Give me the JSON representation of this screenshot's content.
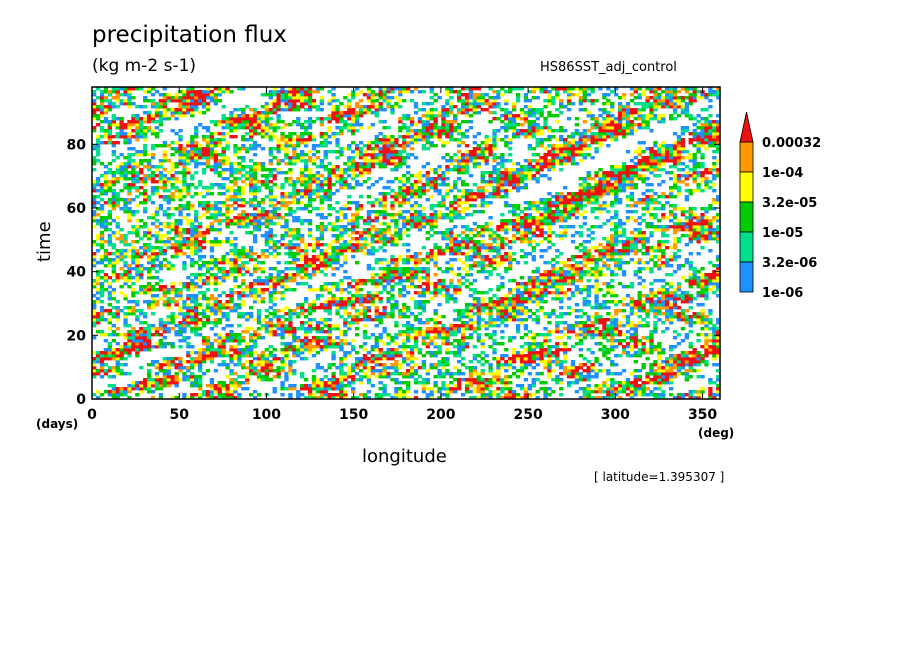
{
  "chart_data": {
    "type": "heatmap",
    "title": "precipitation flux",
    "units": "(kg m-2 s-1)",
    "run_name": "HS86SST_adj_control",
    "xlabel": "longitude",
    "ylabel": "time",
    "x_unit": "(deg)",
    "y_unit": "(days)",
    "xlim": [
      0,
      360
    ],
    "ylim": [
      0,
      98
    ],
    "x_ticks": [
      0,
      50,
      100,
      150,
      200,
      250,
      300,
      350
    ],
    "y_ticks": [
      0,
      20,
      40,
      60,
      80
    ],
    "x_tick_labels": [
      "0",
      "50",
      "100",
      "150",
      "200",
      "250",
      "300",
      "350"
    ],
    "y_tick_labels": [
      "0",
      "20",
      "40",
      "60",
      "80"
    ],
    "note": "[ latitude=1.395307 ]",
    "colorbar": {
      "levels": [
        "1e-06",
        "3.2e-06",
        "1e-05",
        "3.2e-05",
        "1e-04",
        "0.00032"
      ],
      "colors": [
        "#ffffff",
        "#1e90ff",
        "#00e08c",
        "#00cc00",
        "#ffff00",
        "#ff9900",
        "#ee1111"
      ],
      "extend": "max"
    },
    "pattern": "eastward-propagating convective bands; intermittent precipitation filling most of the domain"
  }
}
